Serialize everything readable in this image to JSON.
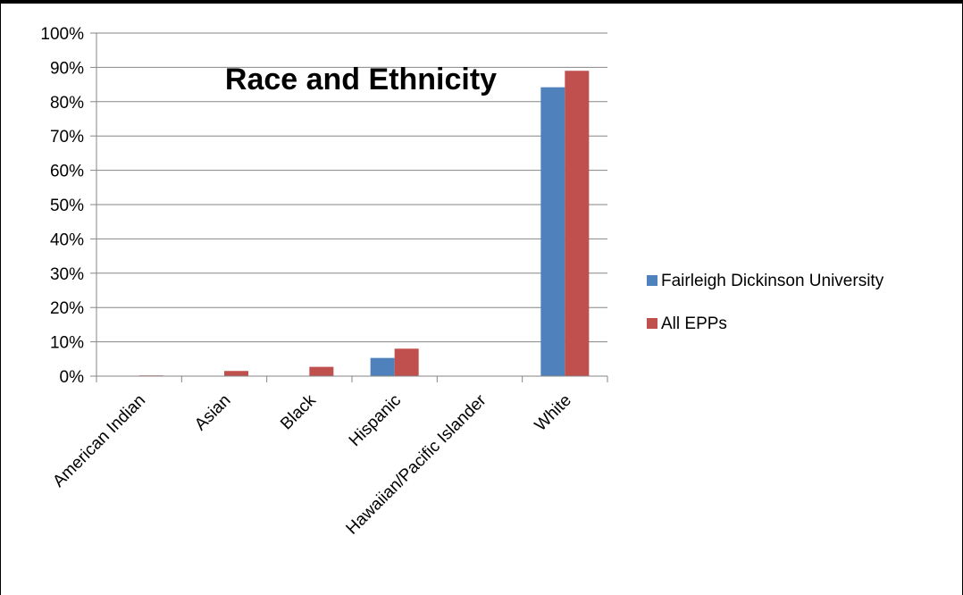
{
  "chart_data": {
    "type": "bar",
    "title": "Race and Ethnicity",
    "xlabel": "",
    "ylabel": "",
    "categories": [
      "American Indian",
      "Asian",
      "Black",
      "Hispanic",
      "Hawaiian/Pacific Islander",
      "White"
    ],
    "series": [
      {
        "name": "Fairleigh Dickinson University",
        "color": "#4f81bd",
        "values": [
          0,
          0,
          0,
          5.3,
          0,
          84.2
        ]
      },
      {
        "name": "All EPPs",
        "color": "#c0504d",
        "values": [
          0.2,
          1.5,
          2.7,
          8.0,
          0.1,
          89.0
        ]
      }
    ],
    "ylim": [
      0,
      100
    ],
    "yticks": [
      "0%",
      "10%",
      "20%",
      "30%",
      "40%",
      "50%",
      "60%",
      "70%",
      "80%",
      "90%",
      "100%"
    ],
    "grid": true,
    "legend_position": "right"
  }
}
